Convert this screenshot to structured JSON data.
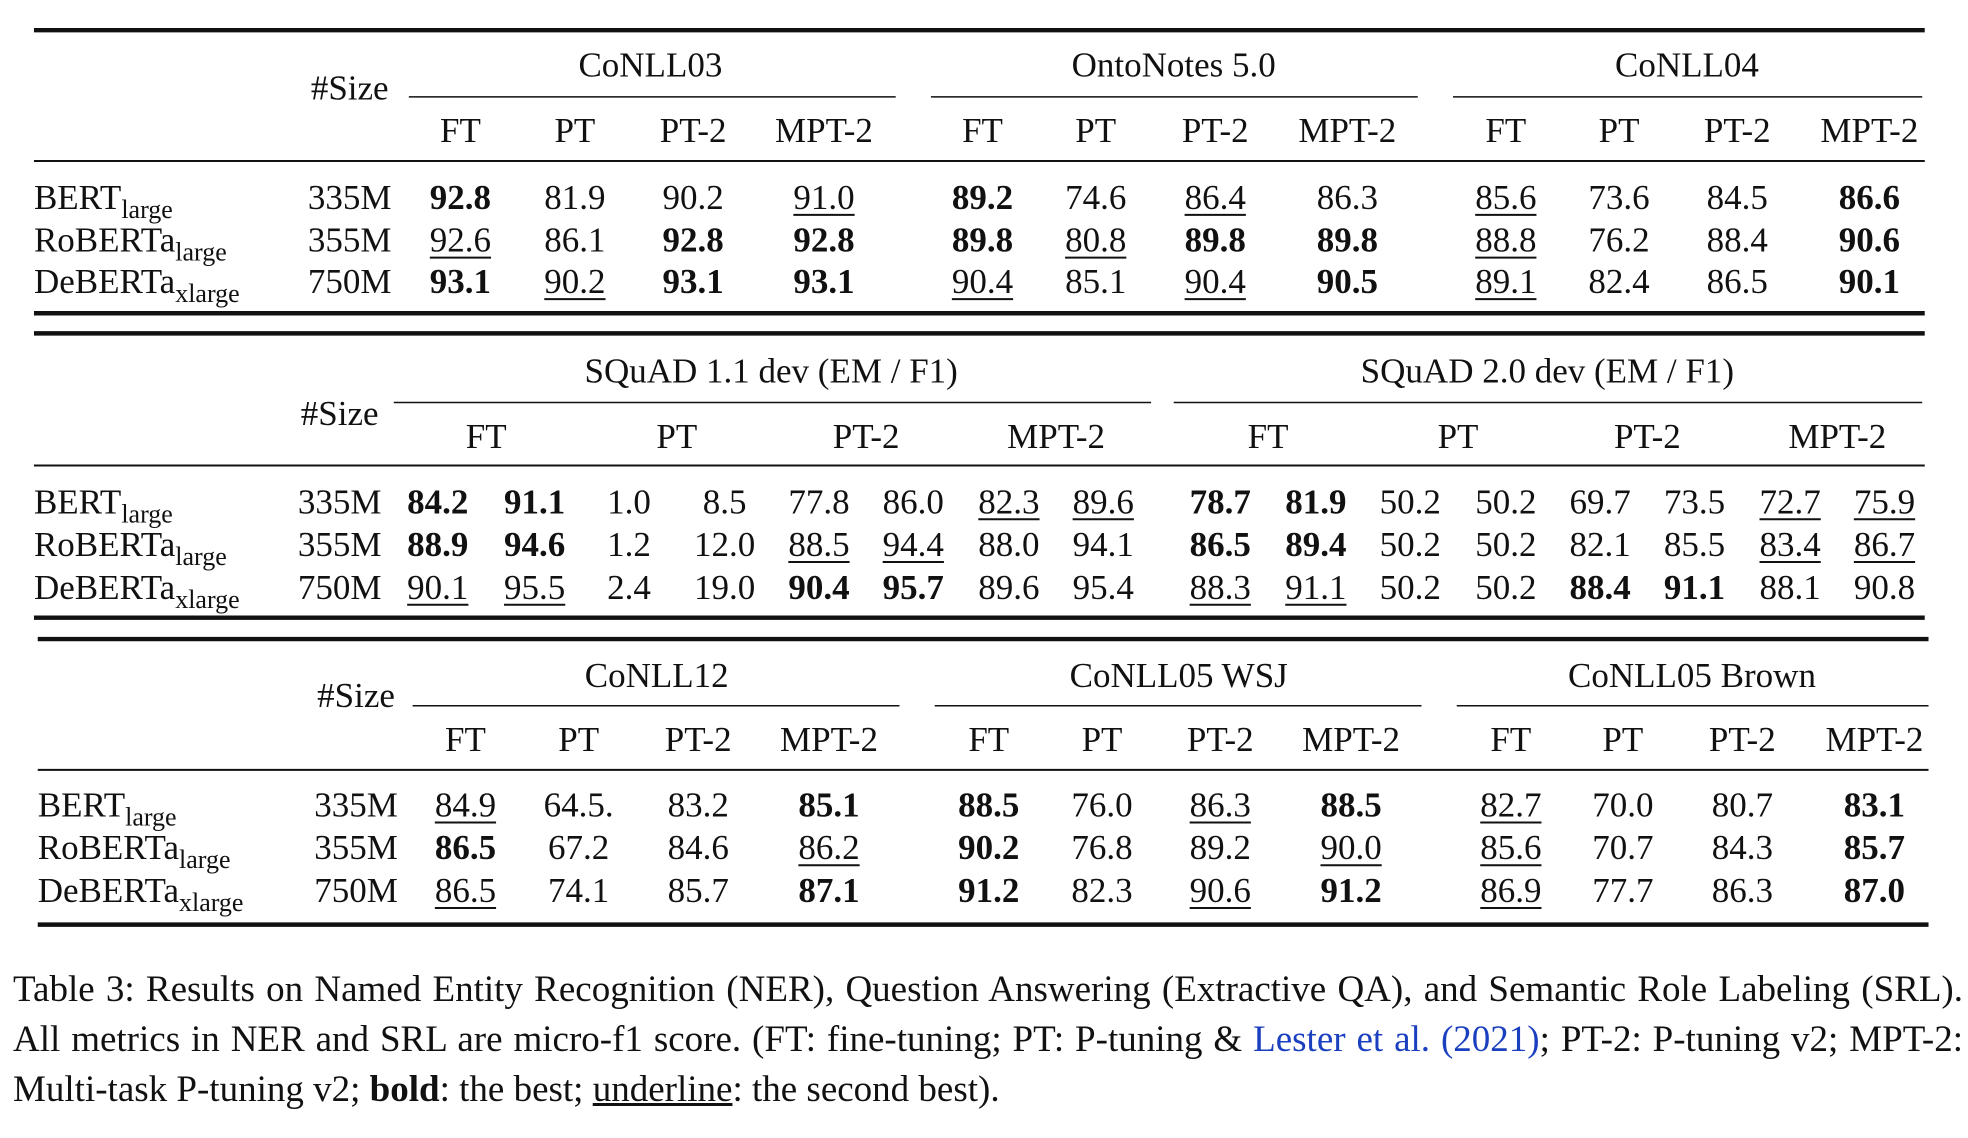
{
  "tables": [
    {
      "size_header": "#Size",
      "groups": [
        "CoNLL03",
        "OntoNotes 5.0",
        "CoNLL04"
      ],
      "methods": [
        "FT",
        "PT",
        "PT-2",
        "MPT-2"
      ],
      "rows": [
        {
          "model": "BERT",
          "sub": "large",
          "size": "335M",
          "cells": [
            {
              "text": "92.8",
              "style": "bold"
            },
            {
              "text": "81.9"
            },
            {
              "text": "90.2"
            },
            {
              "text": "91.0",
              "style": "underline"
            },
            {
              "text": "89.2",
              "style": "bold"
            },
            {
              "text": "74.6"
            },
            {
              "text": "86.4",
              "style": "underline"
            },
            {
              "text": "86.3"
            },
            {
              "text": "85.6",
              "style": "underline"
            },
            {
              "text": "73.6"
            },
            {
              "text": "84.5"
            },
            {
              "text": "86.6",
              "style": "bold"
            }
          ]
        },
        {
          "model": "RoBERTa",
          "sub": "large",
          "size": "355M",
          "cells": [
            {
              "text": "92.6",
              "style": "underline"
            },
            {
              "text": "86.1"
            },
            {
              "text": "92.8",
              "style": "bold"
            },
            {
              "text": "92.8",
              "style": "bold"
            },
            {
              "text": "89.8",
              "style": "bold"
            },
            {
              "text": "80.8",
              "style": "underline"
            },
            {
              "text": "89.8",
              "style": "bold"
            },
            {
              "text": "89.8",
              "style": "bold"
            },
            {
              "text": "88.8",
              "style": "underline"
            },
            {
              "text": "76.2"
            },
            {
              "text": "88.4"
            },
            {
              "text": "90.6",
              "style": "bold"
            }
          ]
        },
        {
          "model": "DeBERTa",
          "sub": "xlarge",
          "size": "750M",
          "cells": [
            {
              "text": "93.1",
              "style": "bold"
            },
            {
              "text": "90.2",
              "style": "underline"
            },
            {
              "text": "93.1",
              "style": "bold"
            },
            {
              "text": "93.1",
              "style": "bold"
            },
            {
              "text": "90.4",
              "style": "underline"
            },
            {
              "text": "85.1"
            },
            {
              "text": "90.4",
              "style": "underline"
            },
            {
              "text": "90.5",
              "style": "bold"
            },
            {
              "text": "89.1",
              "style": "underline"
            },
            {
              "text": "82.4"
            },
            {
              "text": "86.5"
            },
            {
              "text": "90.1",
              "style": "bold"
            }
          ]
        }
      ]
    },
    {
      "size_header": "#Size",
      "groups": [
        "SQuAD 1.1 dev (EM / F1)",
        "SQuAD 2.0 dev (EM / F1)"
      ],
      "methods": [
        "FT",
        "PT",
        "PT-2",
        "MPT-2"
      ],
      "rows": [
        {
          "model": "BERT",
          "sub": "large",
          "size": "335M",
          "cells": [
            {
              "text": "84.2",
              "style": "bold"
            },
            {
              "text": "91.1",
              "style": "bold"
            },
            {
              "text": "1.0"
            },
            {
              "text": "8.5"
            },
            {
              "text": "77.8"
            },
            {
              "text": "86.0"
            },
            {
              "text": "82.3",
              "style": "underline"
            },
            {
              "text": "89.6",
              "style": "underline"
            },
            {
              "text": "78.7",
              "style": "bold"
            },
            {
              "text": "81.9",
              "style": "bold"
            },
            {
              "text": "50.2"
            },
            {
              "text": "50.2"
            },
            {
              "text": "69.7"
            },
            {
              "text": "73.5"
            },
            {
              "text": "72.7",
              "style": "underline"
            },
            {
              "text": "75.9",
              "style": "underline"
            }
          ]
        },
        {
          "model": "RoBERTa",
          "sub": "large",
          "size": "355M",
          "cells": [
            {
              "text": "88.9",
              "style": "bold"
            },
            {
              "text": "94.6",
              "style": "bold"
            },
            {
              "text": "1.2"
            },
            {
              "text": "12.0"
            },
            {
              "text": "88.5",
              "style": "underline"
            },
            {
              "text": "94.4",
              "style": "underline"
            },
            {
              "text": "88.0"
            },
            {
              "text": "94.1"
            },
            {
              "text": "86.5",
              "style": "bold"
            },
            {
              "text": "89.4",
              "style": "bold"
            },
            {
              "text": "50.2"
            },
            {
              "text": "50.2"
            },
            {
              "text": "82.1"
            },
            {
              "text": "85.5"
            },
            {
              "text": "83.4",
              "style": "underline"
            },
            {
              "text": "86.7",
              "style": "underline"
            }
          ]
        },
        {
          "model": "DeBERTa",
          "sub": "xlarge",
          "size": "750M",
          "cells": [
            {
              "text": "90.1",
              "style": "underline"
            },
            {
              "text": "95.5",
              "style": "underline"
            },
            {
              "text": "2.4"
            },
            {
              "text": "19.0"
            },
            {
              "text": "90.4",
              "style": "bold"
            },
            {
              "text": "95.7",
              "style": "bold"
            },
            {
              "text": "89.6"
            },
            {
              "text": "95.4"
            },
            {
              "text": "88.3",
              "style": "underline"
            },
            {
              "text": "91.1",
              "style": "underline"
            },
            {
              "text": "50.2"
            },
            {
              "text": "50.2"
            },
            {
              "text": "88.4",
              "style": "bold"
            },
            {
              "text": "91.1",
              "style": "bold"
            },
            {
              "text": "88.1"
            },
            {
              "text": "90.8"
            }
          ]
        }
      ]
    },
    {
      "size_header": "#Size",
      "groups": [
        "CoNLL12",
        "CoNLL05 WSJ",
        "CoNLL05 Brown"
      ],
      "methods": [
        "FT",
        "PT",
        "PT-2",
        "MPT-2"
      ],
      "rows": [
        {
          "model": "BERT",
          "sub": "large",
          "size": "335M",
          "cells": [
            {
              "text": "84.9",
              "style": "underline"
            },
            {
              "text": "64.5."
            },
            {
              "text": "83.2"
            },
            {
              "text": "85.1",
              "style": "bold"
            },
            {
              "text": "88.5",
              "style": "bold"
            },
            {
              "text": "76.0"
            },
            {
              "text": "86.3",
              "style": "underline"
            },
            {
              "text": "88.5",
              "style": "bold"
            },
            {
              "text": "82.7",
              "style": "underline"
            },
            {
              "text": "70.0"
            },
            {
              "text": "80.7"
            },
            {
              "text": "83.1",
              "style": "bold"
            }
          ]
        },
        {
          "model": "RoBERTa",
          "sub": "large",
          "size": "355M",
          "cells": [
            {
              "text": "86.5",
              "style": "bold"
            },
            {
              "text": "67.2"
            },
            {
              "text": "84.6"
            },
            {
              "text": "86.2",
              "style": "underline"
            },
            {
              "text": "90.2",
              "style": "bold"
            },
            {
              "text": "76.8"
            },
            {
              "text": "89.2"
            },
            {
              "text": "90.0",
              "style": "underline"
            },
            {
              "text": "85.6",
              "style": "underline"
            },
            {
              "text": "70.7"
            },
            {
              "text": "84.3"
            },
            {
              "text": "85.7",
              "style": "bold"
            }
          ]
        },
        {
          "model": "DeBERTa",
          "sub": "xlarge",
          "size": "750M",
          "cells": [
            {
              "text": "86.5",
              "style": "underline"
            },
            {
              "text": "74.1"
            },
            {
              "text": "85.7"
            },
            {
              "text": "87.1",
              "style": "bold"
            },
            {
              "text": "91.2",
              "style": "bold"
            },
            {
              "text": "82.3"
            },
            {
              "text": "90.6",
              "style": "underline"
            },
            {
              "text": "91.2",
              "style": "bold"
            },
            {
              "text": "86.9",
              "style": "underline"
            },
            {
              "text": "77.7"
            },
            {
              "text": "86.3"
            },
            {
              "text": "87.0",
              "style": "bold"
            }
          ]
        }
      ]
    }
  ],
  "caption": {
    "text": "Table 3: Results on Named Entity Recognition (NER), Question Answering (Extractive QA), and Semantic Role Labeling (SRL). All metrics in NER and SRL are micro-f1 score. (FT: fine-tuning; PT: P-tuning & ",
    "cite_authors": "Lester et al.",
    "cite_year": "(2021)",
    "text2": "; PT-2: P-tuning v2; MPT-2: Multi-task P-tuning v2; ",
    "bold": "bold",
    "text3": ": the best; ",
    "underline": "underline",
    "text4": ": the second best)."
  }
}
